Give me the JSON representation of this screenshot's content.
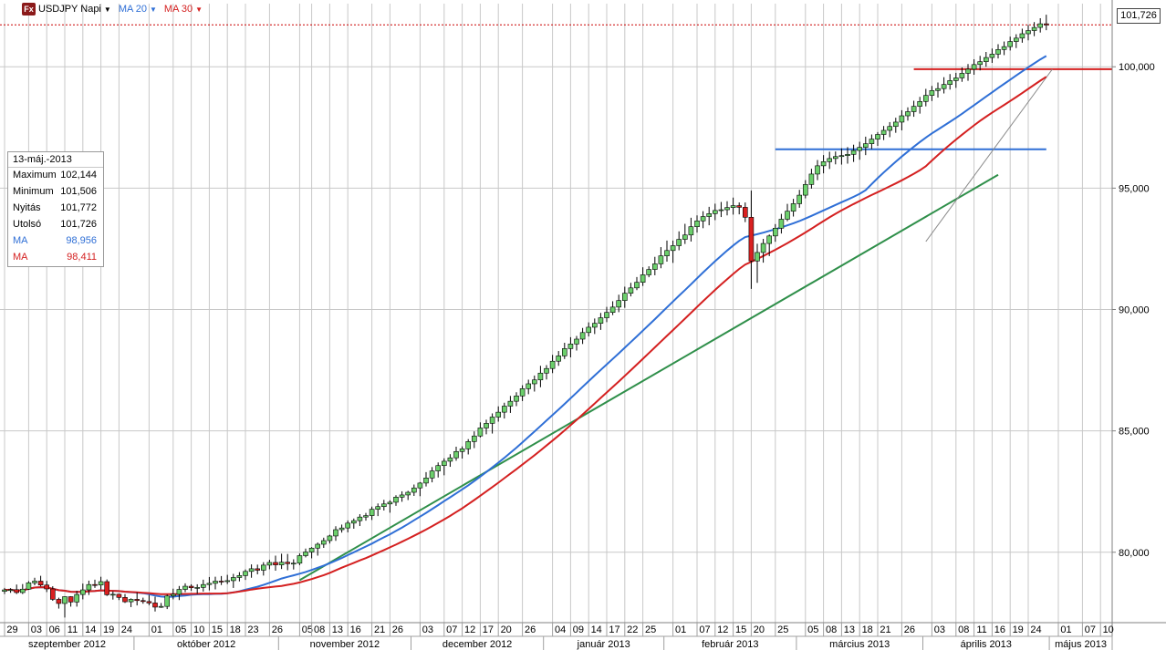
{
  "toolbar": {
    "icon_text": "Fx",
    "symbol": "USDJPY Napi",
    "ma1_label": "MA 20",
    "ma2_label": "MA 30",
    "colors": {
      "ma1": "#2f6fd6",
      "ma2": "#d42020"
    }
  },
  "infobox": {
    "date": "13-máj.-2013",
    "rows": [
      {
        "label": "Maximum",
        "value": "102,144"
      },
      {
        "label": "Minimum",
        "value": "101,506"
      },
      {
        "label": "Nyitás",
        "value": "101,772"
      },
      {
        "label": "Utolsó",
        "value": "101,726"
      },
      {
        "label": "MA",
        "value": "98,956",
        "color": "#2f6fd6"
      },
      {
        "label": "MA",
        "value": "98,411",
        "color": "#d42020"
      }
    ]
  },
  "last_price_label": "101,726",
  "chart_data": {
    "type": "candlestick",
    "y_ticks": [
      {
        "value": 80,
        "label": "80,000"
      },
      {
        "value": 85,
        "label": "85,000"
      },
      {
        "value": 90,
        "label": "90,000"
      },
      {
        "value": 95,
        "label": "95,000"
      },
      {
        "value": 100,
        "label": "100,000"
      }
    ],
    "ylim": [
      77.1,
      102.6
    ],
    "last_price": 101.726,
    "x_ticks": [
      {
        "i": 0,
        "label": "29"
      },
      {
        "i": 4,
        "label": "03"
      },
      {
        "i": 7,
        "label": "06"
      },
      {
        "i": 10,
        "label": "11"
      },
      {
        "i": 13,
        "label": "14"
      },
      {
        "i": 16,
        "label": "19"
      },
      {
        "i": 19,
        "label": "24"
      },
      {
        "i": 24,
        "label": "01"
      },
      {
        "i": 28,
        "label": "05"
      },
      {
        "i": 31,
        "label": "10"
      },
      {
        "i": 34,
        "label": "15"
      },
      {
        "i": 37,
        "label": "18"
      },
      {
        "i": 40,
        "label": "23"
      },
      {
        "i": 44,
        "label": "26"
      },
      {
        "i": 49,
        "label": "05"
      },
      {
        "i": 51,
        "label": "08"
      },
      {
        "i": 54,
        "label": "13"
      },
      {
        "i": 57,
        "label": "16"
      },
      {
        "i": 61,
        "label": "21"
      },
      {
        "i": 64,
        "label": "26"
      },
      {
        "i": 69,
        "label": "03"
      },
      {
        "i": 73,
        "label": "07"
      },
      {
        "i": 76,
        "label": "12"
      },
      {
        "i": 79,
        "label": "17"
      },
      {
        "i": 82,
        "label": "20"
      },
      {
        "i": 86,
        "label": "26"
      },
      {
        "i": 91,
        "label": "04"
      },
      {
        "i": 94,
        "label": "09"
      },
      {
        "i": 97,
        "label": "14"
      },
      {
        "i": 100,
        "label": "17"
      },
      {
        "i": 103,
        "label": "22"
      },
      {
        "i": 106,
        "label": "25"
      },
      {
        "i": 111,
        "label": "01"
      },
      {
        "i": 115,
        "label": "07"
      },
      {
        "i": 118,
        "label": "12"
      },
      {
        "i": 121,
        "label": "15"
      },
      {
        "i": 124,
        "label": "20"
      },
      {
        "i": 128,
        "label": "25"
      },
      {
        "i": 133,
        "label": "05"
      },
      {
        "i": 136,
        "label": "08"
      },
      {
        "i": 139,
        "label": "13"
      },
      {
        "i": 142,
        "label": "18"
      },
      {
        "i": 145,
        "label": "21"
      },
      {
        "i": 149,
        "label": "26"
      },
      {
        "i": 154,
        "label": "03"
      },
      {
        "i": 158,
        "label": "08"
      },
      {
        "i": 161,
        "label": "11"
      },
      {
        "i": 164,
        "label": "16"
      },
      {
        "i": 167,
        "label": "19"
      },
      {
        "i": 170,
        "label": "24"
      },
      {
        "i": 175,
        "label": "01"
      },
      {
        "i": 179,
        "label": "07"
      },
      {
        "i": 182,
        "label": "10"
      }
    ],
    "months": [
      {
        "label": "szeptember 2012",
        "start": -2,
        "end": 21.5
      },
      {
        "label": "október 2012",
        "start": 21.5,
        "end": 45.5
      },
      {
        "label": "november 2012",
        "start": 45.5,
        "end": 67.5
      },
      {
        "label": "december 2012",
        "start": 67.5,
        "end": 89.5
      },
      {
        "label": "január 2013",
        "start": 89.5,
        "end": 109.5
      },
      {
        "label": "február 2013",
        "start": 109.5,
        "end": 131.5
      },
      {
        "label": "március 2013",
        "start": 131.5,
        "end": 152.5
      },
      {
        "label": "április 2013",
        "start": 152.5,
        "end": 173.5
      },
      {
        "label": "május 2013",
        "start": 173.5,
        "end": 184
      }
    ],
    "ma_periods": [
      20,
      30
    ],
    "ohlc": [
      [
        78.39,
        78.53,
        78.28,
        78.45
      ],
      [
        78.45,
        78.52,
        78.33,
        78.46
      ],
      [
        78.46,
        78.67,
        78.28,
        78.34
      ],
      [
        78.34,
        78.69,
        78.28,
        78.48
      ],
      [
        78.48,
        78.81,
        78.45,
        78.74
      ],
      [
        78.74,
        78.95,
        78.64,
        78.81
      ],
      [
        78.81,
        79.03,
        78.59,
        78.65
      ],
      [
        78.65,
        78.82,
        78.36,
        78.49
      ],
      [
        78.49,
        78.6,
        78.0,
        78.06
      ],
      [
        78.06,
        78.13,
        77.68,
        77.89
      ],
      [
        77.89,
        78.19,
        77.31,
        78.17
      ],
      [
        78.17,
        78.19,
        77.76,
        77.95
      ],
      [
        77.95,
        78.41,
        77.76,
        78.26
      ],
      [
        78.26,
        78.71,
        78.06,
        78.45
      ],
      [
        78.45,
        78.83,
        78.24,
        78.67
      ],
      [
        78.67,
        78.87,
        78.53,
        78.65
      ],
      [
        78.65,
        78.99,
        78.47,
        78.79
      ],
      [
        78.79,
        78.88,
        78.2,
        78.25
      ],
      [
        78.25,
        78.39,
        78.05,
        78.27
      ],
      [
        78.27,
        78.29,
        78.03,
        78.14
      ],
      [
        78.14,
        78.28,
        77.91,
        77.96
      ],
      [
        77.96,
        78.1,
        77.74,
        78.06
      ],
      [
        78.06,
        78.35,
        77.81,
        78.01
      ],
      [
        78.01,
        78.13,
        77.88,
        77.97
      ],
      [
        77.97,
        78.24,
        77.82,
        77.91
      ],
      [
        77.91,
        78.17,
        77.56,
        77.74
      ],
      [
        77.74,
        77.91,
        77.71,
        77.77
      ],
      [
        77.77,
        78.26,
        77.66,
        78.2
      ],
      [
        78.2,
        78.5,
        78.06,
        78.27
      ],
      [
        78.27,
        78.61,
        78.03,
        78.47
      ],
      [
        78.47,
        78.72,
        78.36,
        78.6
      ],
      [
        78.6,
        78.68,
        78.41,
        78.54
      ],
      [
        78.54,
        78.68,
        78.29,
        78.55
      ],
      [
        78.55,
        78.87,
        78.38,
        78.67
      ],
      [
        78.67,
        78.98,
        78.43,
        78.72
      ],
      [
        78.72,
        78.99,
        78.47,
        78.81
      ],
      [
        78.81,
        79.02,
        78.65,
        78.79
      ],
      [
        78.79,
        79.07,
        78.69,
        78.83
      ],
      [
        78.83,
        79.11,
        78.53,
        78.96
      ],
      [
        78.96,
        79.18,
        78.8,
        79.04
      ],
      [
        79.04,
        79.29,
        78.86,
        79.21
      ],
      [
        79.21,
        79.5,
        78.95,
        79.32
      ],
      [
        79.32,
        79.49,
        79.09,
        79.26
      ],
      [
        79.26,
        79.59,
        79.04,
        79.47
      ],
      [
        79.47,
        79.69,
        79.3,
        79.58
      ],
      [
        79.58,
        79.86,
        79.24,
        79.48
      ],
      [
        79.48,
        79.94,
        79.31,
        79.59
      ],
      [
        79.59,
        79.93,
        79.26,
        79.53
      ],
      [
        79.53,
        79.71,
        79.29,
        79.55
      ],
      [
        79.55,
        79.95,
        79.47,
        79.86
      ],
      [
        79.86,
        80.15,
        79.79,
        80.01
      ],
      [
        80.01,
        80.21,
        79.75,
        80.17
      ],
      [
        80.17,
        80.4,
        79.86,
        80.33
      ],
      [
        80.33,
        80.6,
        80.18,
        80.48
      ],
      [
        80.48,
        80.72,
        80.36,
        80.67
      ],
      [
        80.67,
        81.07,
        80.47,
        80.93
      ],
      [
        80.93,
        81.14,
        80.81,
        81.0
      ],
      [
        81.0,
        81.31,
        80.82,
        81.2
      ],
      [
        81.2,
        81.39,
        80.97,
        81.3
      ],
      [
        81.3,
        81.57,
        81.08,
        81.45
      ],
      [
        81.45,
        81.62,
        81.3,
        81.51
      ],
      [
        81.51,
        81.88,
        81.33,
        81.77
      ],
      [
        81.77,
        82.01,
        81.49,
        81.88
      ],
      [
        81.88,
        82.16,
        81.72,
        81.99
      ],
      [
        81.99,
        82.14,
        81.63,
        82.06
      ],
      [
        82.06,
        82.35,
        81.91,
        82.27
      ],
      [
        82.27,
        82.51,
        82.08,
        82.36
      ],
      [
        82.36,
        82.53,
        82.15,
        82.47
      ],
      [
        82.47,
        82.79,
        82.32,
        82.65
      ],
      [
        82.65,
        82.89,
        82.31,
        82.85
      ],
      [
        82.85,
        83.3,
        82.71,
        83.06
      ],
      [
        83.06,
        83.51,
        82.88,
        83.35
      ],
      [
        83.35,
        83.7,
        83.08,
        83.57
      ],
      [
        83.57,
        83.87,
        83.17,
        83.75
      ],
      [
        83.75,
        84.04,
        83.52,
        83.89
      ],
      [
        83.89,
        84.35,
        83.77,
        84.15
      ],
      [
        84.15,
        84.36,
        83.86,
        84.26
      ],
      [
        84.26,
        84.66,
        84.03,
        84.56
      ],
      [
        84.56,
        84.98,
        84.29,
        84.79
      ],
      [
        84.79,
        85.35,
        84.73,
        85.12
      ],
      [
        85.12,
        85.46,
        84.86,
        85.31
      ],
      [
        85.31,
        85.72,
        84.89,
        85.57
      ],
      [
        85.57,
        86.01,
        85.38,
        85.77
      ],
      [
        85.77,
        86.16,
        85.51,
        86.02
      ],
      [
        86.02,
        86.44,
        85.74,
        86.22
      ],
      [
        86.22,
        86.59,
        86.02,
        86.44
      ],
      [
        86.44,
        86.88,
        86.23,
        86.74
      ],
      [
        86.74,
        87.11,
        86.51,
        86.94
      ],
      [
        86.94,
        87.28,
        86.62,
        87.1
      ],
      [
        87.1,
        87.68,
        86.8,
        87.38
      ],
      [
        87.38,
        87.71,
        87.12,
        87.57
      ],
      [
        87.57,
        88.13,
        87.38,
        87.87
      ],
      [
        87.87,
        88.29,
        87.68,
        88.09
      ],
      [
        88.09,
        88.63,
        87.96,
        88.39
      ],
      [
        88.39,
        88.86,
        88.03,
        88.58
      ],
      [
        88.58,
        88.91,
        88.31,
        88.78
      ],
      [
        88.78,
        89.24,
        88.58,
        89.05
      ],
      [
        89.05,
        89.47,
        88.89,
        89.27
      ],
      [
        89.27,
        89.63,
        88.99,
        89.43
      ],
      [
        89.43,
        89.86,
        89.16,
        89.66
      ],
      [
        89.66,
        90.11,
        89.48,
        89.88
      ],
      [
        89.88,
        90.34,
        89.77,
        90.1
      ],
      [
        90.1,
        90.61,
        89.89,
        90.37
      ],
      [
        90.37,
        90.94,
        90.07,
        90.67
      ],
      [
        90.67,
        91.1,
        90.54,
        90.89
      ],
      [
        90.89,
        91.34,
        90.8,
        91.12
      ],
      [
        91.12,
        91.74,
        90.97,
        91.43
      ],
      [
        91.43,
        91.78,
        91.33,
        91.65
      ],
      [
        91.65,
        92.17,
        91.41,
        91.88
      ],
      [
        91.88,
        92.57,
        91.7,
        92.21
      ],
      [
        92.21,
        92.84,
        91.97,
        92.43
      ],
      [
        92.43,
        92.84,
        91.92,
        92.63
      ],
      [
        92.63,
        93.22,
        92.44,
        92.89
      ],
      [
        92.89,
        93.53,
        92.7,
        93.07
      ],
      [
        93.07,
        93.78,
        92.8,
        93.41
      ],
      [
        93.41,
        93.88,
        93.17,
        93.65
      ],
      [
        93.65,
        94.05,
        93.35,
        93.83
      ],
      [
        93.83,
        94.23,
        93.47,
        93.95
      ],
      [
        93.95,
        94.36,
        93.68,
        94.08
      ],
      [
        94.08,
        94.43,
        93.81,
        94.11
      ],
      [
        94.11,
        94.46,
        93.88,
        94.2
      ],
      [
        94.2,
        94.61,
        93.91,
        94.28
      ],
      [
        94.28,
        94.41,
        93.92,
        94.21
      ],
      [
        94.21,
        94.41,
        93.6,
        93.8
      ],
      [
        93.8,
        94.9,
        90.85,
        92.0
      ],
      [
        92.0,
        92.71,
        91.1,
        92.35
      ],
      [
        92.35,
        92.91,
        91.93,
        92.72
      ],
      [
        92.72,
        93.09,
        92.2,
        93.03
      ],
      [
        93.03,
        93.52,
        92.79,
        93.35
      ],
      [
        93.35,
        93.94,
        93.13,
        93.72
      ],
      [
        93.72,
        94.35,
        93.64,
        94.05
      ],
      [
        94.05,
        94.56,
        93.83,
        94.36
      ],
      [
        94.36,
        94.93,
        94.19,
        94.71
      ],
      [
        94.71,
        95.33,
        94.58,
        95.15
      ],
      [
        95.15,
        95.8,
        94.98,
        95.58
      ],
      [
        95.58,
        96.16,
        95.33,
        95.92
      ],
      [
        95.92,
        96.36,
        95.61,
        96.09
      ],
      [
        96.09,
        96.5,
        95.79,
        96.22
      ],
      [
        96.22,
        96.51,
        95.98,
        96.3
      ],
      [
        96.3,
        96.64,
        95.97,
        96.34
      ],
      [
        96.34,
        96.69,
        96.01,
        96.39
      ],
      [
        96.39,
        96.79,
        96.08,
        96.55
      ],
      [
        96.55,
        96.91,
        96.17,
        96.68
      ],
      [
        96.68,
        97.12,
        96.36,
        96.83
      ],
      [
        96.83,
        97.21,
        96.61,
        97.02
      ],
      [
        97.02,
        97.31,
        96.74,
        97.21
      ],
      [
        97.21,
        97.56,
        96.98,
        97.38
      ],
      [
        97.38,
        97.72,
        97.1,
        97.54
      ],
      [
        97.54,
        97.9,
        97.28,
        97.72
      ],
      [
        97.72,
        98.21,
        97.38,
        97.98
      ],
      [
        97.98,
        98.33,
        97.78,
        98.15
      ],
      [
        98.15,
        98.6,
        97.94,
        98.37
      ],
      [
        98.37,
        98.76,
        98.07,
        98.57
      ],
      [
        98.57,
        99.09,
        98.37,
        98.82
      ],
      [
        98.82,
        99.21,
        98.59,
        99.02
      ],
      [
        99.02,
        99.35,
        98.73,
        99.1
      ],
      [
        99.1,
        99.57,
        98.9,
        99.27
      ],
      [
        99.27,
        99.7,
        99.06,
        99.43
      ],
      [
        99.43,
        99.75,
        99.13,
        99.54
      ],
      [
        99.54,
        99.97,
        99.38,
        99.73
      ],
      [
        99.73,
        100.11,
        99.42,
        99.9
      ],
      [
        99.9,
        100.31,
        99.67,
        100.09
      ],
      [
        100.09,
        100.45,
        99.85,
        100.21
      ],
      [
        100.21,
        100.61,
        100.0,
        100.38
      ],
      [
        100.38,
        100.75,
        100.16,
        100.52
      ],
      [
        100.52,
        100.93,
        100.34,
        100.71
      ],
      [
        100.71,
        101.04,
        100.48,
        100.83
      ],
      [
        100.83,
        101.24,
        100.67,
        101.04
      ],
      [
        101.04,
        101.34,
        100.77,
        101.18
      ],
      [
        101.18,
        101.57,
        100.99,
        101.36
      ],
      [
        101.36,
        101.72,
        101.09,
        101.49
      ],
      [
        101.49,
        101.84,
        101.26,
        101.62
      ],
      [
        101.62,
        102.0,
        101.41,
        101.77
      ],
      [
        101.77,
        102.144,
        101.506,
        101.726
      ]
    ],
    "hlines": [
      {
        "value": 99.9,
        "from": 151,
        "to": 184,
        "color": "#d42020"
      },
      {
        "value": 96.6,
        "from": 128,
        "to": 173,
        "color": "#2f6fd6"
      }
    ],
    "trendlines": [
      {
        "from": [
          49,
          78.85
        ],
        "to": [
          165,
          95.55
        ],
        "color": "#2f8f4a"
      },
      {
        "from": [
          153,
          92.8
        ],
        "to": [
          174,
          99.9
        ],
        "color": "#8a8a8a"
      }
    ]
  }
}
